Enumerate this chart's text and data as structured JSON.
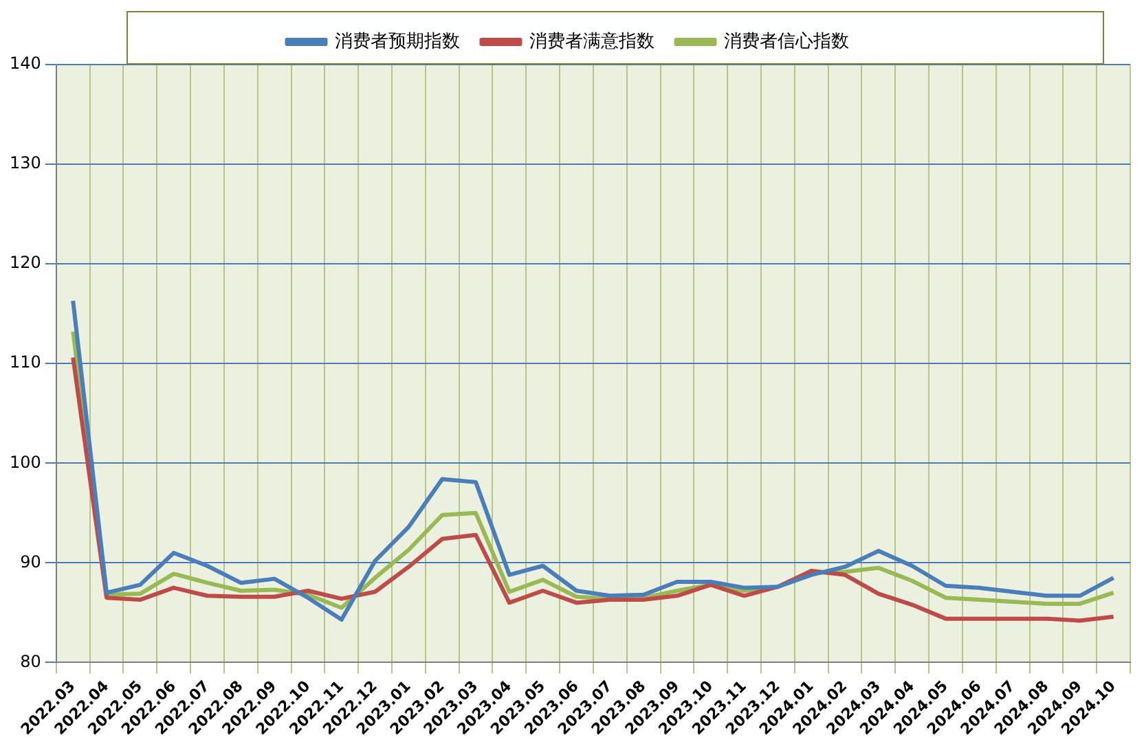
{
  "chart_data": {
    "type": "line",
    "categories": [
      "2022.03",
      "2022.04",
      "2022.05",
      "2022.06",
      "2022.07",
      "2022.08",
      "2022.09",
      "2022.10",
      "2022.11",
      "2022.12",
      "2023.01",
      "2023.02",
      "2023.03",
      "2023.04",
      "2023.05",
      "2023.06",
      "2023.07",
      "2023.08",
      "2023.09",
      "2023.10",
      "2023.11",
      "2023.12",
      "2024.01",
      "2024.02",
      "2024.03",
      "2024.04",
      "2024.05",
      "2024.06",
      "2024.07",
      "2024.08",
      "2024.09",
      "2024.10"
    ],
    "series": [
      {
        "name": "消费者预期指数",
        "color": "#4a7ebb",
        "values": [
          116.3,
          87.0,
          87.8,
          91.0,
          89.7,
          88.0,
          88.4,
          86.5,
          84.3,
          90.2,
          93.6,
          98.4,
          98.1,
          88.8,
          89.7,
          87.2,
          86.7,
          86.8,
          88.1,
          88.1,
          87.5,
          87.6,
          88.8,
          89.6,
          91.2,
          89.7,
          87.7,
          87.5,
          87.1,
          86.7,
          86.7,
          88.5
        ]
      },
      {
        "name": "消费者满意指数",
        "color": "#be4b48",
        "values": [
          110.6,
          86.5,
          86.3,
          87.5,
          86.7,
          86.6,
          86.6,
          87.2,
          86.4,
          87.1,
          89.6,
          92.4,
          92.8,
          86.0,
          87.2,
          86.0,
          86.3,
          86.3,
          86.7,
          87.8,
          86.7,
          87.6,
          89.2,
          88.8,
          86.9,
          85.8,
          84.4,
          84.4,
          84.4,
          84.4,
          84.2,
          84.6
        ]
      },
      {
        "name": "消费者信心指数",
        "color": "#98b954",
        "values": [
          113.2,
          86.8,
          86.9,
          88.9,
          88.0,
          87.2,
          87.3,
          86.8,
          85.5,
          88.5,
          91.3,
          94.8,
          95.0,
          87.1,
          88.3,
          86.6,
          86.4,
          86.5,
          87.2,
          87.8,
          87.2,
          87.6,
          89.0,
          89.1,
          89.5,
          88.2,
          86.5,
          86.3,
          86.1,
          85.9,
          85.9,
          87.0
        ]
      }
    ],
    "ylim": [
      80,
      140
    ],
    "yticks": [
      80,
      90,
      100,
      110,
      120,
      130,
      140
    ],
    "grid": true,
    "legend": "top",
    "marker": "none",
    "line_style": "solid"
  }
}
